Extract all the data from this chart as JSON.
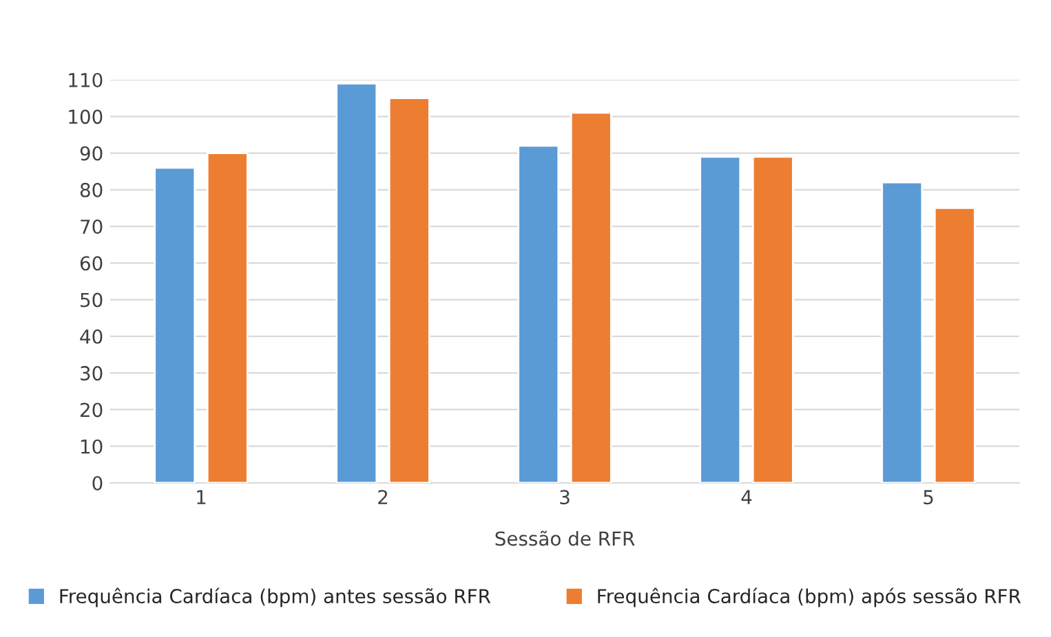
{
  "chart_data": {
    "type": "bar",
    "xlabel": "Sessão de RFR",
    "categories": [
      "1",
      "2",
      "3",
      "4",
      "5"
    ],
    "series": [
      {
        "name": "Frequência Cardíaca (bpm) antes sessão RFR",
        "color": "#5b9bd5",
        "values": [
          86,
          109,
          92,
          89,
          82
        ]
      },
      {
        "name": "Frequência Cardíaca (bpm) após sessão RFR",
        "color": "#ed7d31",
        "values": [
          90,
          105,
          101,
          89,
          75
        ]
      }
    ],
    "ylim": [
      0,
      110
    ],
    "yticks": [
      0,
      10,
      20,
      30,
      40,
      50,
      60,
      70,
      80,
      90,
      100,
      110
    ],
    "grid": "y",
    "legend": "bottom"
  }
}
